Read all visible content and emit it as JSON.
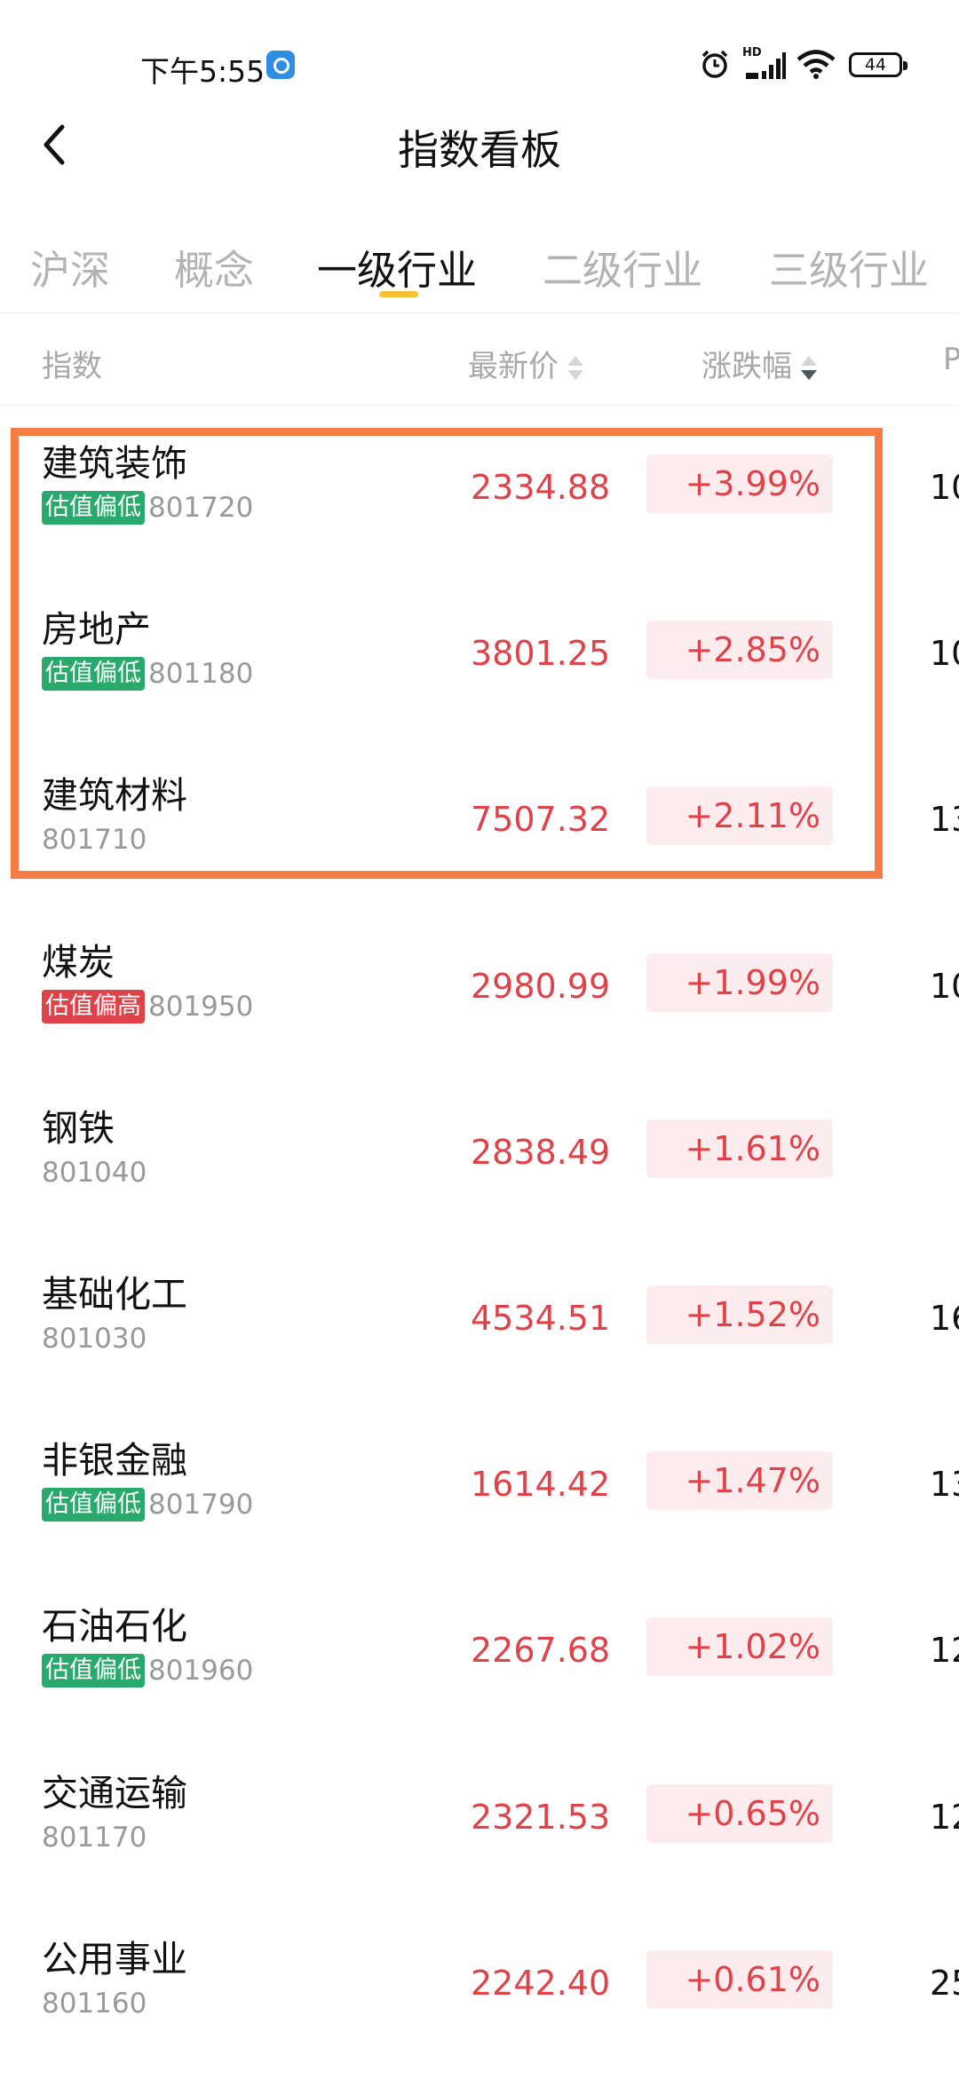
{
  "status_bar": {
    "time": "下午5:55",
    "network_label": "HD",
    "battery": "44",
    "icons": [
      "app-icon",
      "alarm-icon",
      "signal-icon",
      "wifi-icon",
      "battery-icon"
    ]
  },
  "header": {
    "title": "指数看板",
    "back_icon": "chevron-left-icon"
  },
  "tabs": [
    {
      "label": "沪深",
      "active": false
    },
    {
      "label": "概念",
      "active": false
    },
    {
      "label": "一级行业",
      "active": true
    },
    {
      "label": "二级行业",
      "active": false
    },
    {
      "label": "三级行业",
      "active": false
    }
  ],
  "columns": {
    "index": "指数",
    "price": "最新价",
    "change": "涨跌幅",
    "extra": "P"
  },
  "rows": [
    {
      "name": "建筑装饰",
      "tag": "估值偏低",
      "tag_type": "low",
      "code": "801720",
      "price": "2334.88",
      "change": "+3.99%",
      "extra": "10"
    },
    {
      "name": "房地产",
      "tag": "估值偏低",
      "tag_type": "low",
      "code": "801180",
      "price": "3801.25",
      "change": "+2.85%",
      "extra": "10"
    },
    {
      "name": "建筑材料",
      "tag": "",
      "tag_type": "",
      "code": "801710",
      "price": "7507.32",
      "change": "+2.11%",
      "extra": "13"
    },
    {
      "name": "煤炭",
      "tag": "估值偏高",
      "tag_type": "high",
      "code": "801950",
      "price": "2980.99",
      "change": "+1.99%",
      "extra": "10"
    },
    {
      "name": "钢铁",
      "tag": "",
      "tag_type": "",
      "code": "801040",
      "price": "2838.49",
      "change": "+1.61%",
      "extra": ""
    },
    {
      "name": "基础化工",
      "tag": "",
      "tag_type": "",
      "code": "801030",
      "price": "4534.51",
      "change": "+1.52%",
      "extra": "16"
    },
    {
      "name": "非银金融",
      "tag": "估值偏低",
      "tag_type": "low",
      "code": "801790",
      "price": "1614.42",
      "change": "+1.47%",
      "extra": "13"
    },
    {
      "name": "石油石化",
      "tag": "估值偏低",
      "tag_type": "low",
      "code": "801960",
      "price": "2267.68",
      "change": "+1.02%",
      "extra": "12"
    },
    {
      "name": "交通运输",
      "tag": "",
      "tag_type": "",
      "code": "801170",
      "price": "2321.53",
      "change": "+0.65%",
      "extra": "12"
    },
    {
      "name": "公用事业",
      "tag": "",
      "tag_type": "",
      "code": "801160",
      "price": "2242.40",
      "change": "+0.61%",
      "extra": "25"
    }
  ],
  "colors": {
    "up": "#e0424a",
    "up_bg": "#fdeced",
    "tag_low": "#29a96b",
    "tag_high": "#e0424a",
    "tab_indicator": "#f6c232",
    "highlight": "#f57c43"
  }
}
